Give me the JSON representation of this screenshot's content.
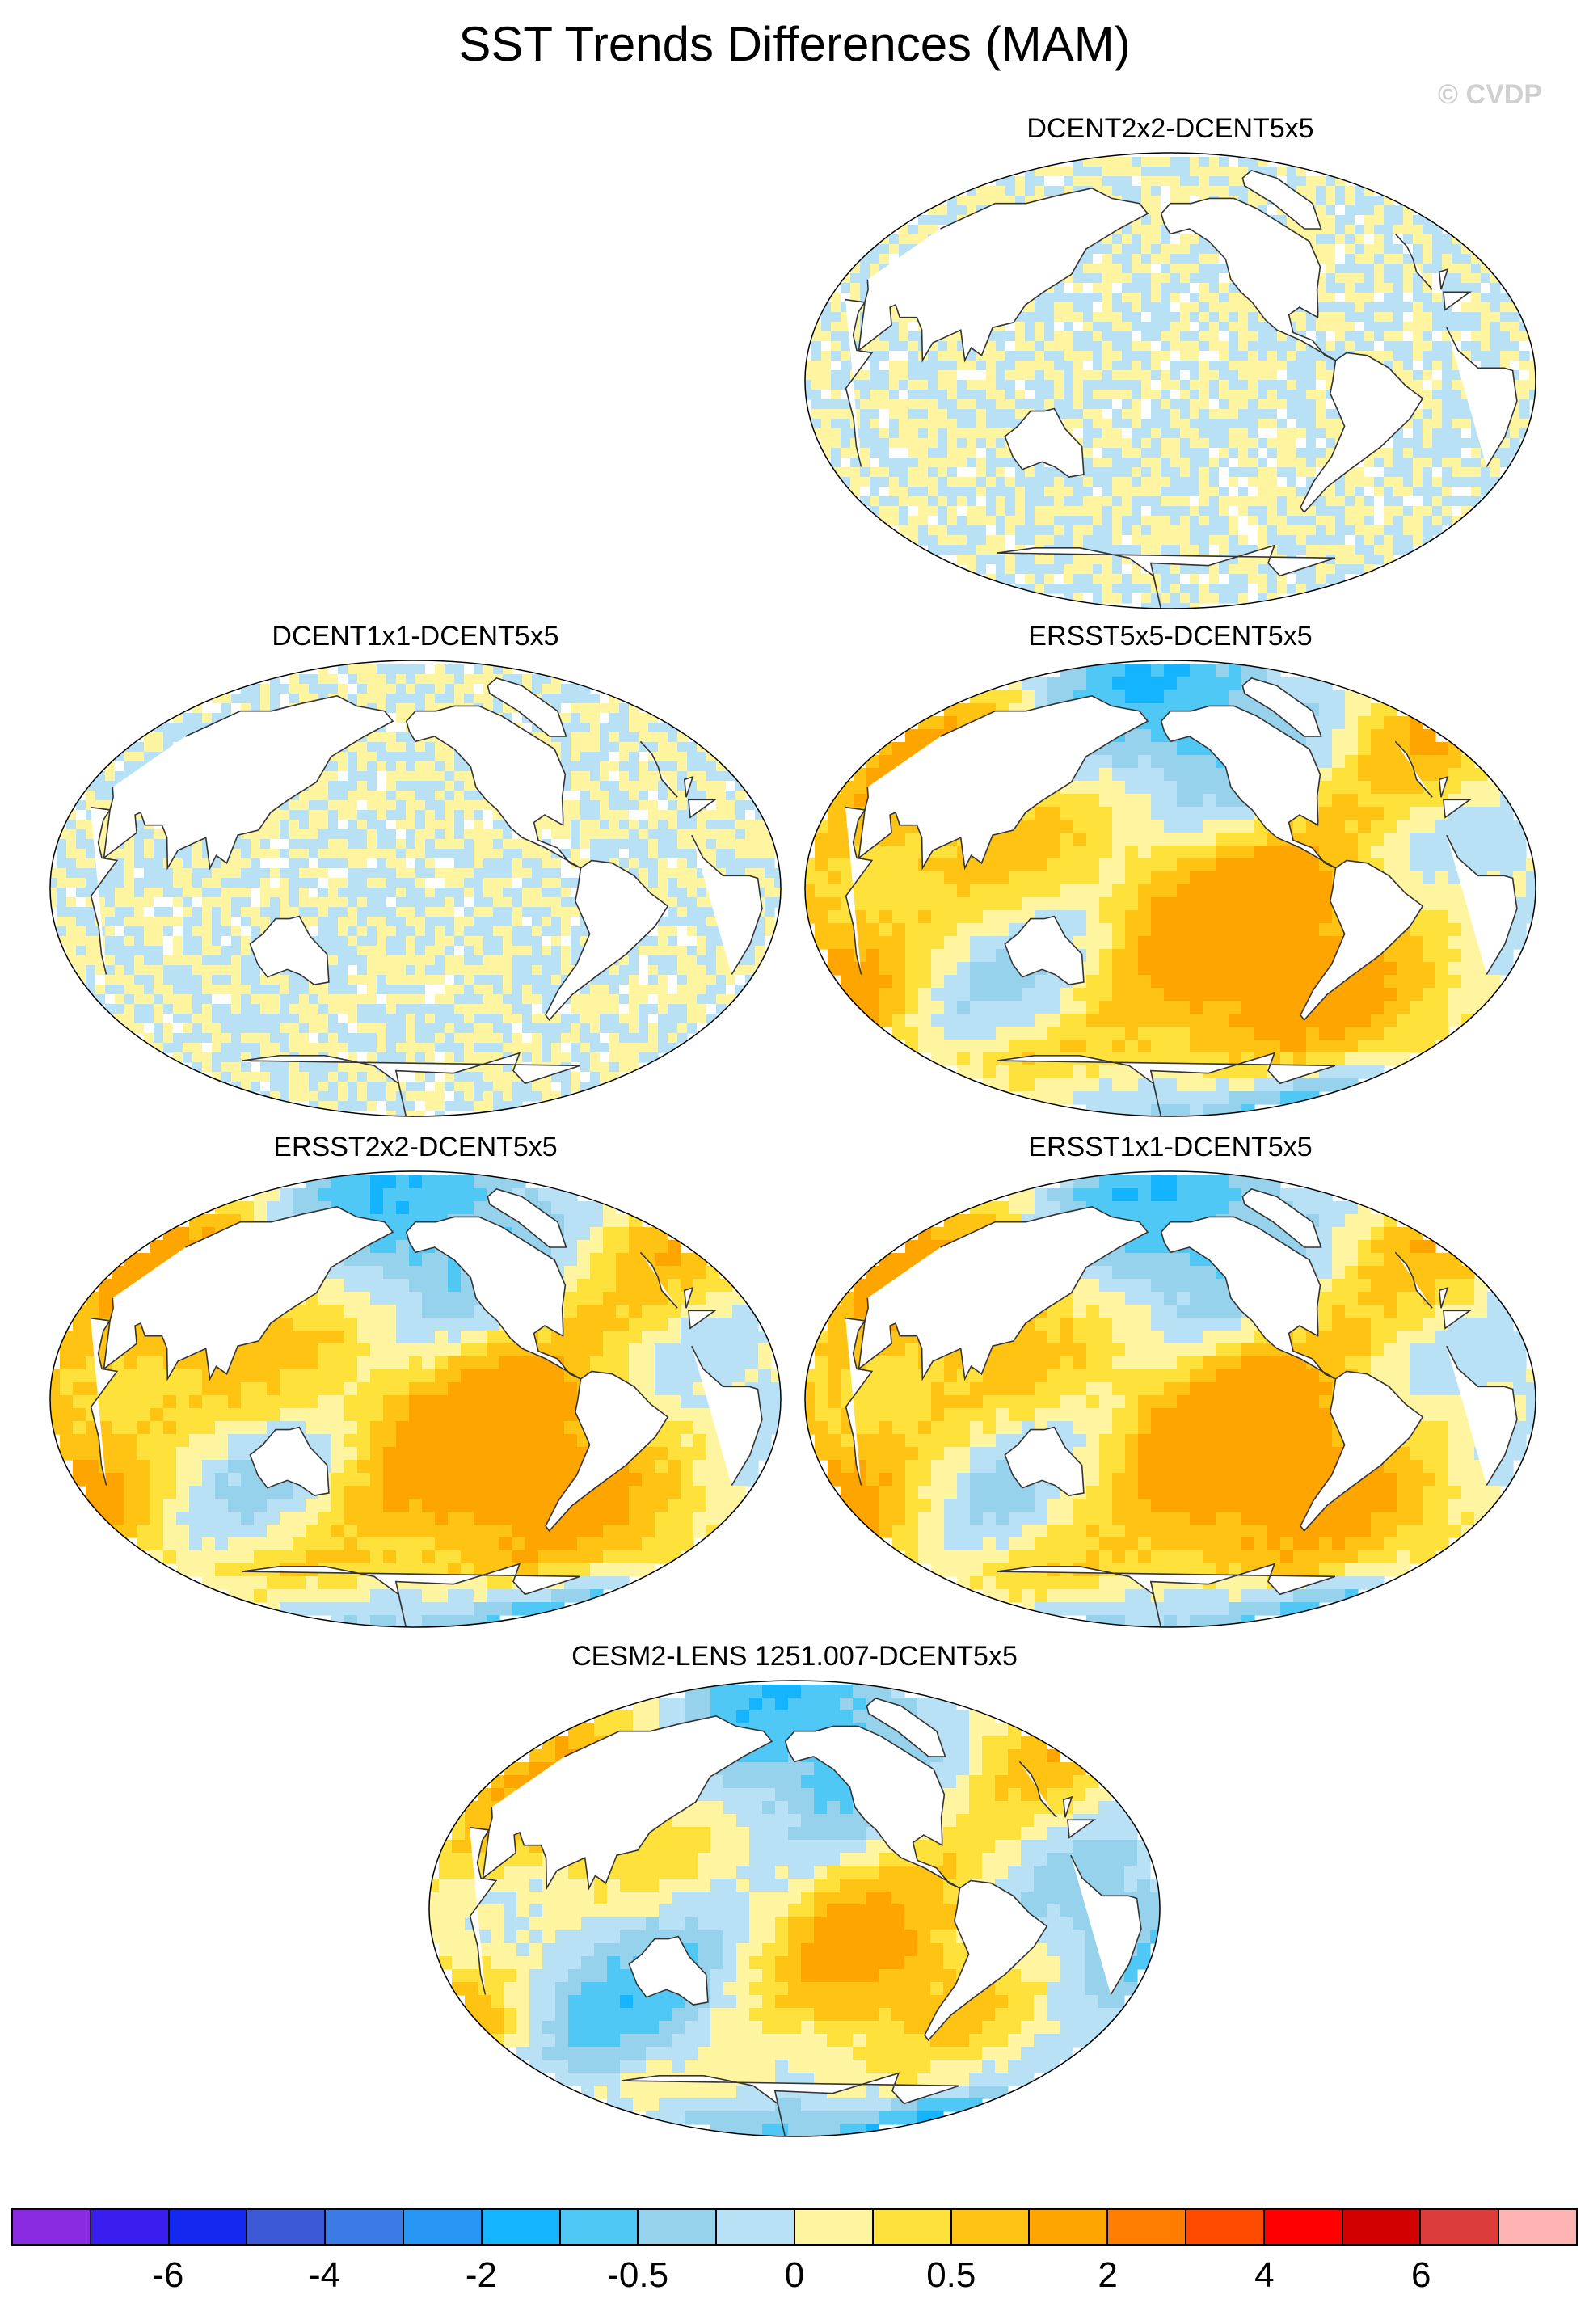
{
  "title": "SST Trends Differences (MAM)",
  "copyright": "© CVDP",
  "panels": [
    {
      "label": "DCENT2x2-DCENT5x5",
      "pattern": "checker"
    },
    {
      "label": "DCENT1x1-DCENT5x5",
      "pattern": "checker"
    },
    {
      "label": "ERSST5x5-DCENT5x5",
      "pattern": "warm"
    },
    {
      "label": "ERSST2x2-DCENT5x5",
      "pattern": "warm"
    },
    {
      "label": "ERSST1x1-DCENT5x5",
      "pattern": "warm"
    },
    {
      "label": "CESM2-LENS 1251.007-DCENT5x5",
      "pattern": "mixed"
    }
  ],
  "colorbar": {
    "colors": [
      "#8a2be2",
      "#3a1ef0",
      "#1428f0",
      "#3c5ad8",
      "#3c7ae8",
      "#2896f5",
      "#14b4ff",
      "#50c8f5",
      "#96d2eb",
      "#b9e1f5",
      "#fff5a0",
      "#ffe13c",
      "#ffc314",
      "#ffa500",
      "#ff7d00",
      "#ff4b00",
      "#ff0000",
      "#d20000",
      "#dc3c3c",
      "#ffb4b4"
    ],
    "tick_labels": [
      "-6",
      "-4",
      "-2",
      "-0.5",
      "0",
      "0.5",
      "2",
      "4",
      "6"
    ]
  }
}
